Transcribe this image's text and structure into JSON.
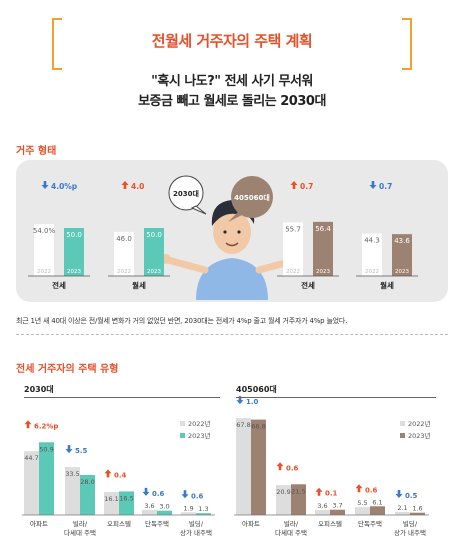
{
  "header": {
    "title": "전월세 거주자의 주택 계획",
    "subtitle_line1": "\"혹시 나도?\" 전세 사기 무서워",
    "subtitle_line2": "보증금 빼고 월세로 돌리는 2030대"
  },
  "colors": {
    "accent_orange": "#e8502a",
    "bracket": "#f0a22e",
    "teal": "#5cc8b8",
    "brown": "#9c8270",
    "bar_2022": "#f0f0f0",
    "bar_2022_lower": "#dddddd",
    "up_red": "#e8502a",
    "down_blue": "#3a78c8",
    "panel_bg": "#e9e9e9"
  },
  "section1": {
    "label": "거주 형태",
    "bubble_left": "2030대",
    "bubble_right": "405060대",
    "note": "최근 1년 새 40대 이상은 전/월세 변화가 거의 없었던 반면, 2030대는 전세가 4%p 줄고 월세 거주자가 4%p 늘었다."
  },
  "section2": {
    "label": "전세 거주자의 주택 유형",
    "group_left": "2030대",
    "group_right": "405060대",
    "legend": [
      "2022년",
      "2023년"
    ]
  },
  "chart_data": [
    {
      "type": "bar",
      "group": "2030대",
      "categories": [
        "전세",
        "월세"
      ],
      "series": [
        {
          "name": "2022",
          "values": [
            54.0,
            46.0
          ]
        },
        {
          "name": "2023",
          "values": [
            50.0,
            50.0
          ]
        }
      ],
      "value_labels": {
        "2022": [
          "54.0%",
          "46.0"
        ],
        "2023": [
          "50.0",
          "50.0"
        ]
      },
      "changes": [
        {
          "direction": "down",
          "text": "4.0%p"
        },
        {
          "direction": "up",
          "text": "4.0"
        }
      ],
      "ylim": [
        0,
        100
      ]
    },
    {
      "type": "bar",
      "group": "405060대",
      "categories": [
        "전세",
        "월세"
      ],
      "series": [
        {
          "name": "2022",
          "values": [
            55.7,
            44.3
          ]
        },
        {
          "name": "2023",
          "values": [
            56.4,
            43.6
          ]
        }
      ],
      "value_labels": {
        "2022": [
          "55.7",
          "44.3"
        ],
        "2023": [
          "56.4",
          "43.6"
        ]
      },
      "changes": [
        {
          "direction": "up",
          "text": "0.7"
        },
        {
          "direction": "down",
          "text": "0.7"
        }
      ],
      "ylim": [
        0,
        100
      ]
    },
    {
      "type": "bar",
      "group": "2030대",
      "categories": [
        "아파트",
        "빌라/\n다세대 주택",
        "오피스텔",
        "단독주택",
        "빌딩/\n상가 내주택"
      ],
      "series": [
        {
          "name": "2022년",
          "values": [
            44.7,
            33.5,
            16.1,
            3.6,
            1.9
          ]
        },
        {
          "name": "2023년",
          "values": [
            50.9,
            28.0,
            16.5,
            3.0,
            1.3
          ]
        }
      ],
      "value_labels": {
        "2022년": [
          "44.7",
          "33.5",
          "16.1",
          "3.6",
          "1.9"
        ],
        "2023년": [
          "50.9",
          "28.0",
          "16.5",
          "3.0",
          "1.3"
        ]
      },
      "changes": [
        {
          "direction": "up",
          "text": "6.2%p"
        },
        {
          "direction": "down",
          "text": "5.5"
        },
        {
          "direction": "up",
          "text": "0.4"
        },
        {
          "direction": "down",
          "text": "0.6"
        },
        {
          "direction": "down",
          "text": "0.6"
        }
      ],
      "ylim": [
        0,
        70
      ]
    },
    {
      "type": "bar",
      "group": "405060대",
      "categories": [
        "아파트",
        "빌라/\n다세대 주택",
        "오피스텔",
        "단독주택",
        "빌딩/\n상가 내주택"
      ],
      "series": [
        {
          "name": "2022년",
          "values": [
            67.8,
            20.9,
            3.6,
            5.5,
            2.1
          ]
        },
        {
          "name": "2023년",
          "values": [
            66.8,
            21.5,
            3.7,
            6.1,
            1.6
          ]
        }
      ],
      "value_labels": {
        "2022년": [
          "67.8",
          "20.9",
          "3.6",
          "5.5",
          "2.1"
        ],
        "2023년": [
          "66.8",
          "21.5",
          "3.7",
          "6.1",
          "1.6"
        ]
      },
      "changes": [
        {
          "direction": "down",
          "text": "1.0"
        },
        {
          "direction": "up",
          "text": "0.6"
        },
        {
          "direction": "up",
          "text": "0.1"
        },
        {
          "direction": "up",
          "text": "0.6"
        },
        {
          "direction": "down",
          "text": "0.5"
        }
      ],
      "ylim": [
        0,
        70
      ]
    }
  ]
}
